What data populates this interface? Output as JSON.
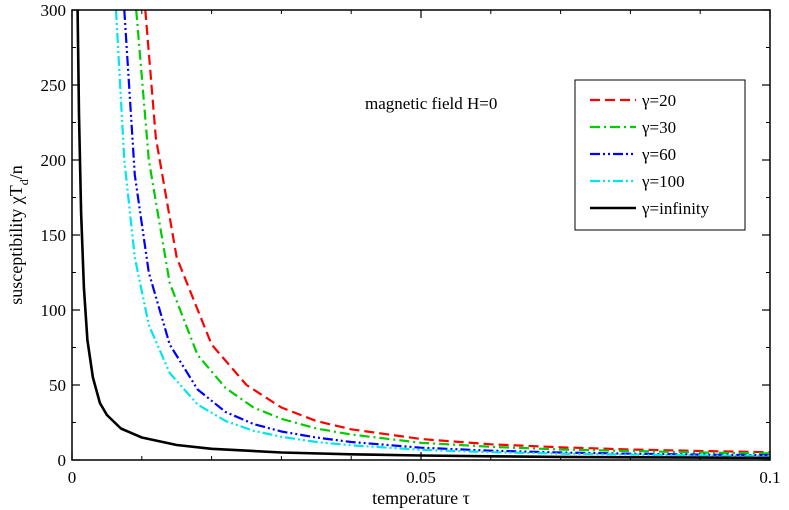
{
  "chart_data": {
    "type": "line",
    "annotation": "magnetic field H=0",
    "xlabel": "temperature τ",
    "ylabel_parts": {
      "main": "susceptibility χT",
      "sub": "d",
      "tail": "/n"
    },
    "xlim": [
      0,
      0.1
    ],
    "ylim": [
      0,
      300
    ],
    "xticks": [
      0,
      0.05,
      0.1
    ],
    "xtick_labels": [
      "0",
      "0.05",
      "0.1"
    ],
    "yticks": [
      0,
      50,
      100,
      150,
      200,
      250,
      300
    ],
    "ytick_labels": [
      "0",
      "50",
      "100",
      "150",
      "200",
      "250",
      "300"
    ],
    "legend_position": "top-right",
    "series": [
      {
        "name": "γ=20",
        "color": "#ff0000",
        "dash": "dashed",
        "x": [
          0.0105,
          0.012,
          0.015,
          0.02,
          0.025,
          0.03,
          0.035,
          0.04,
          0.05,
          0.06,
          0.07,
          0.08,
          0.09,
          0.1
        ],
        "y": [
          300,
          215,
          135,
          77,
          50,
          35,
          26,
          20.5,
          14,
          10.5,
          8.5,
          7,
          6,
          5.2
        ]
      },
      {
        "name": "γ=30",
        "color": "#00cc00",
        "dash": "dashdot",
        "x": [
          0.0092,
          0.011,
          0.014,
          0.018,
          0.022,
          0.026,
          0.03,
          0.035,
          0.04,
          0.05,
          0.06,
          0.07,
          0.08,
          0.09,
          0.1
        ],
        "y": [
          300,
          200,
          118,
          70,
          48,
          35,
          27.5,
          21,
          17,
          11.5,
          8.8,
          7,
          6,
          5,
          4.4
        ]
      },
      {
        "name": "γ=60",
        "color": "#0000ff",
        "dash": "dashdotdot",
        "x": [
          0.0075,
          0.009,
          0.011,
          0.014,
          0.018,
          0.022,
          0.026,
          0.03,
          0.035,
          0.04,
          0.05,
          0.06,
          0.07,
          0.08,
          0.09,
          0.1
        ],
        "y": [
          300,
          190,
          125,
          77,
          47,
          32,
          24,
          19,
          15,
          12,
          8.2,
          6.2,
          5,
          4.2,
          3.6,
          3.2
        ]
      },
      {
        "name": "γ=100",
        "color": "#00e5ee",
        "dash": "dashdotdot",
        "x": [
          0.0063,
          0.0075,
          0.009,
          0.011,
          0.014,
          0.018,
          0.022,
          0.026,
          0.03,
          0.035,
          0.04,
          0.05,
          0.06,
          0.07,
          0.08,
          0.09,
          0.1
        ],
        "y": [
          300,
          200,
          135,
          90,
          58,
          37,
          26,
          19.5,
          15.5,
          12,
          9.8,
          6.8,
          5.2,
          4.3,
          3.6,
          3.1,
          2.7
        ]
      },
      {
        "name": "γ=infinity",
        "color": "#000000",
        "dash": "solid",
        "x": [
          0.0008,
          0.001,
          0.0013,
          0.0017,
          0.0022,
          0.003,
          0.004,
          0.005,
          0.007,
          0.01,
          0.015,
          0.02,
          0.03,
          0.04,
          0.05,
          0.06,
          0.07,
          0.08,
          0.09,
          0.1
        ],
        "y": [
          300,
          230,
          165,
          115,
          80,
          55,
          38,
          30,
          21,
          15,
          10,
          7.5,
          5,
          3.8,
          3,
          2.5,
          2.1,
          1.8,
          1.6,
          1.4
        ]
      }
    ]
  }
}
